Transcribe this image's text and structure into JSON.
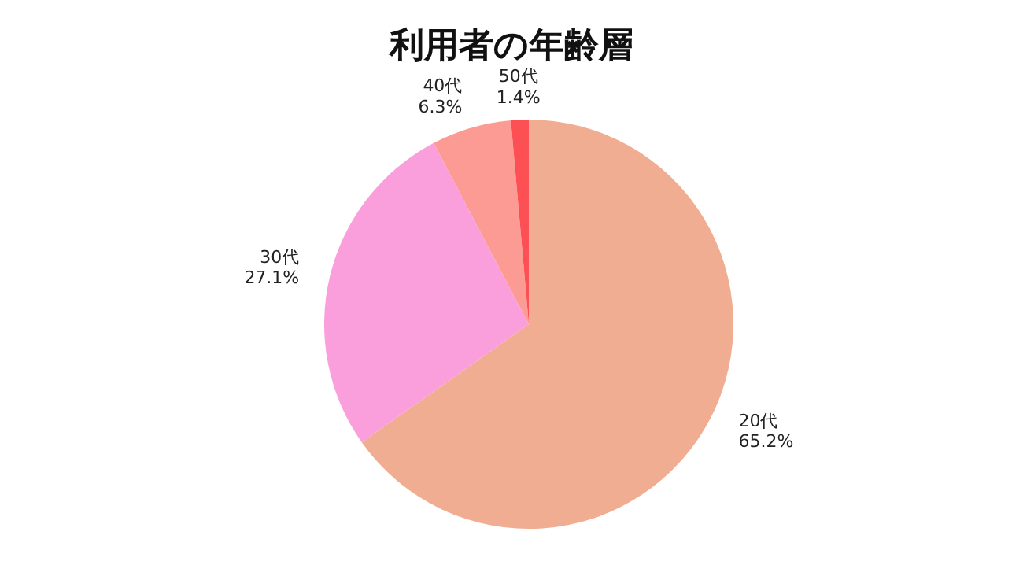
{
  "chart_data": {
    "type": "pie",
    "title": "利用者の年齢層",
    "categories": [
      "20代",
      "30代",
      "40代",
      "50代"
    ],
    "values": [
      65.2,
      27.1,
      6.3,
      1.4
    ],
    "value_labels": [
      "65.2%",
      "27.1%",
      "6.3%",
      "1.4%"
    ],
    "colors": [
      "#f0ad91",
      "#fa9fdc",
      "#fc9b93",
      "#fd5055"
    ],
    "legend": false
  }
}
